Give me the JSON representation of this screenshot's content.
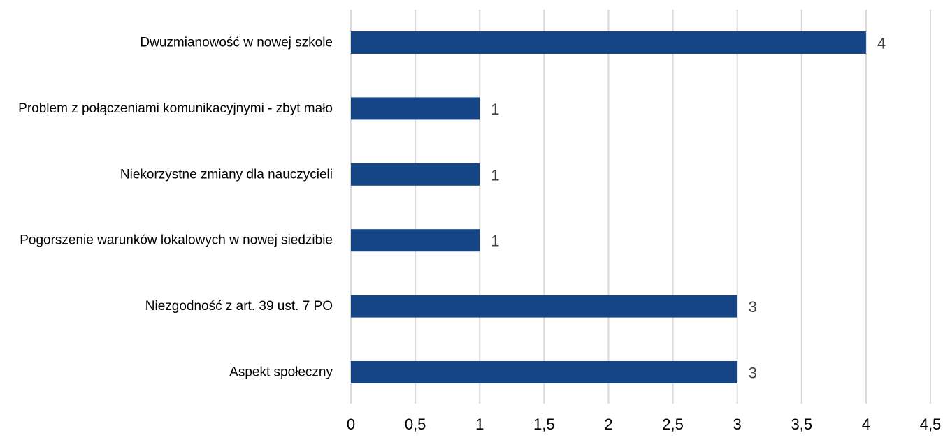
{
  "chart_data": {
    "type": "bar",
    "orientation": "horizontal",
    "categories": [
      "Dwuzmianowość w nowej szkole",
      "Problem z połączeniami komunikacyjnymi - zbyt mało",
      "Niekorzystne zmiany dla nauczycieli",
      "Pogorszenie warunków lokalowych w nowej siedzibie",
      "Niezgodność z art. 39 ust. 7 PO",
      "Aspekt społeczny"
    ],
    "values": [
      4,
      1,
      1,
      1,
      3,
      3
    ],
    "data_labels": [
      "4",
      "1",
      "1",
      "1",
      "3",
      "3"
    ],
    "xlim": [
      0,
      4.5
    ],
    "x_ticks": [
      0,
      0.5,
      1,
      1.5,
      2,
      2.5,
      3,
      3.5,
      4,
      4.5
    ],
    "x_tick_labels": [
      "0",
      "0,5",
      "1",
      "1,5",
      "2",
      "2,5",
      "3",
      "3,5",
      "4",
      "4,5"
    ],
    "grid": "vertical",
    "bar_color": "#154584",
    "title": "",
    "xlabel": "",
    "ylabel": ""
  }
}
